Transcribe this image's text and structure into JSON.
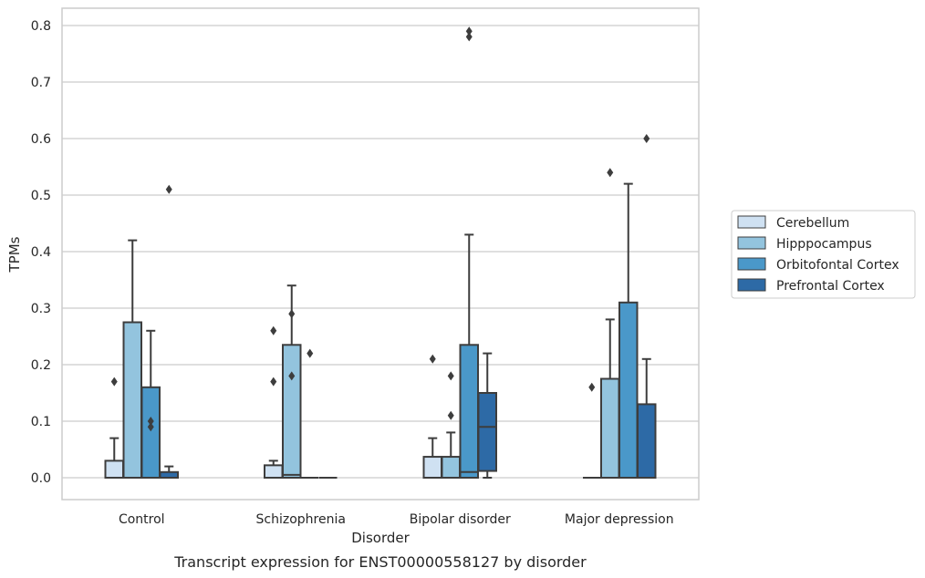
{
  "chart_data": {
    "type": "boxplot",
    "title": "",
    "caption": "Transcript expression for ENST00000558127 by disorder",
    "xlabel": "Disorder",
    "ylabel": "TPMs",
    "ylim": [
      -0.04,
      0.83
    ],
    "yticks": [
      0.0,
      0.1,
      0.2,
      0.3,
      0.4,
      0.5,
      0.6,
      0.7,
      0.8
    ],
    "ytick_labels": [
      "0.0",
      "0.1",
      "0.2",
      "0.3",
      "0.4",
      "0.5",
      "0.6",
      "0.7",
      "0.8"
    ],
    "grid": true,
    "legend_position": "right",
    "categories": [
      "Control",
      "Schizophrenia",
      "Bipolar disorder",
      "Major depression"
    ],
    "series": [
      {
        "name": "Cerebellum",
        "color": "#cfe1f2",
        "boxes": [
          {
            "q1": 0.0,
            "median": 0.0,
            "q3": 0.03,
            "whisker_low": 0.0,
            "whisker_high": 0.07,
            "outliers": [
              0.17
            ]
          },
          {
            "q1": 0.0,
            "median": 0.0,
            "q3": 0.022,
            "whisker_low": 0.0,
            "whisker_high": 0.03,
            "outliers": [
              0.17,
              0.26
            ]
          },
          {
            "q1": 0.0,
            "median": 0.0,
            "q3": 0.037,
            "whisker_low": 0.0,
            "whisker_high": 0.07,
            "outliers": [
              0.21
            ]
          },
          {
            "q1": 0.0,
            "median": 0.0,
            "q3": 0.0,
            "whisker_low": 0.0,
            "whisker_high": 0.0,
            "outliers": [
              0.16
            ]
          }
        ]
      },
      {
        "name": "Hipppocampus",
        "color": "#93c4de",
        "boxes": [
          {
            "q1": 0.0,
            "median": 0.0,
            "q3": 0.275,
            "whisker_low": 0.0,
            "whisker_high": 0.42,
            "outliers": []
          },
          {
            "q1": 0.0,
            "median": 0.005,
            "q3": 0.235,
            "whisker_low": 0.0,
            "whisker_high": 0.34,
            "outliers": [
              0.18,
              0.29
            ]
          },
          {
            "q1": 0.0,
            "median": 0.0,
            "q3": 0.037,
            "whisker_low": 0.0,
            "whisker_high": 0.08,
            "outliers": [
              0.11,
              0.18
            ]
          },
          {
            "q1": 0.0,
            "median": 0.0,
            "q3": 0.175,
            "whisker_low": 0.0,
            "whisker_high": 0.28,
            "outliers": [
              0.54
            ]
          }
        ]
      },
      {
        "name": "Orbitofontal Cortex",
        "color": "#4a98c9",
        "boxes": [
          {
            "q1": 0.0,
            "median": 0.0,
            "q3": 0.16,
            "whisker_low": 0.0,
            "whisker_high": 0.26,
            "outliers": [
              0.09,
              0.1
            ]
          },
          {
            "q1": 0.0,
            "median": 0.0,
            "q3": 0.0,
            "whisker_low": 0.0,
            "whisker_high": 0.0,
            "outliers": [
              0.22
            ]
          },
          {
            "q1": 0.0,
            "median": 0.01,
            "q3": 0.235,
            "whisker_low": 0.0,
            "whisker_high": 0.43,
            "outliers": [
              0.78,
              0.79
            ]
          },
          {
            "q1": 0.0,
            "median": 0.0,
            "q3": 0.31,
            "whisker_low": 0.0,
            "whisker_high": 0.52,
            "outliers": []
          }
        ]
      },
      {
        "name": "Prefrontal Cortex",
        "color": "#2d6aa6",
        "boxes": [
          {
            "q1": 0.0,
            "median": 0.0,
            "q3": 0.01,
            "whisker_low": 0.0,
            "whisker_high": 0.02,
            "outliers": [
              0.51
            ]
          },
          {
            "q1": 0.0,
            "median": 0.0,
            "q3": 0.0,
            "whisker_low": 0.0,
            "whisker_high": 0.0,
            "outliers": []
          },
          {
            "q1": 0.012,
            "median": 0.09,
            "q3": 0.15,
            "whisker_low": 0.0,
            "whisker_high": 0.22,
            "outliers": []
          },
          {
            "q1": 0.0,
            "median": 0.0,
            "q3": 0.13,
            "whisker_low": 0.0,
            "whisker_high": 0.21,
            "outliers": [
              0.6
            ]
          }
        ]
      }
    ]
  }
}
